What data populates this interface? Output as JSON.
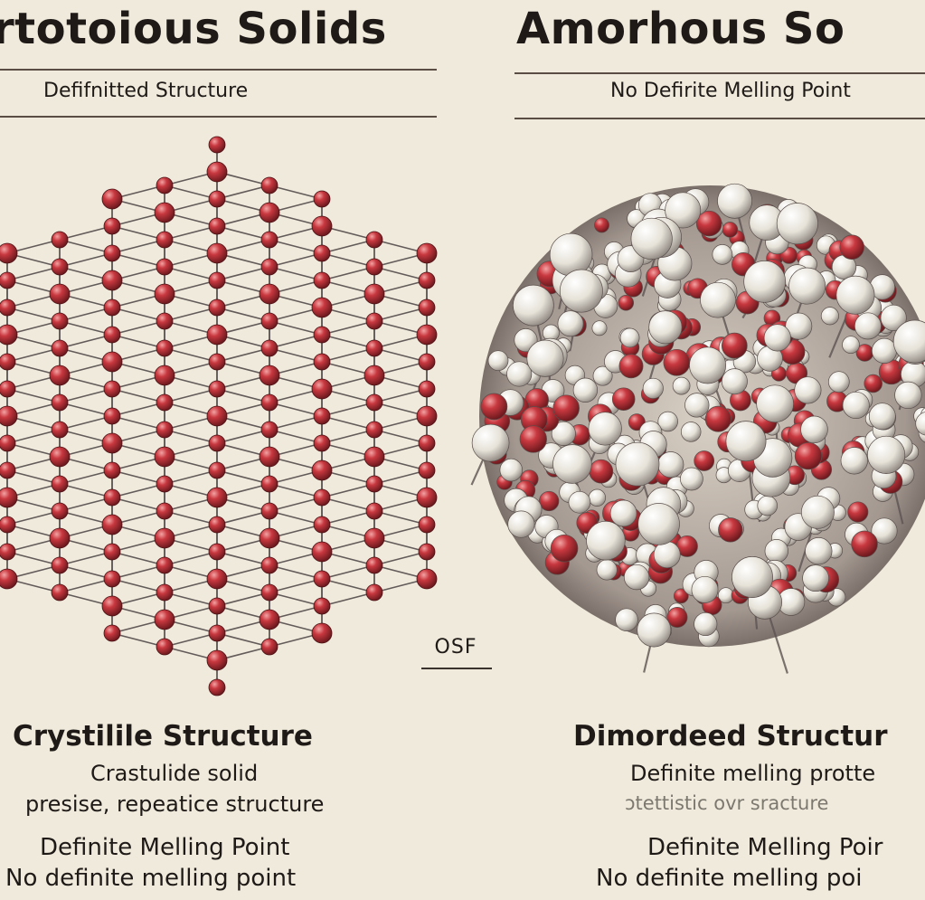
{
  "left": {
    "title": "rtotoious Solids",
    "subtitle": "Defifnitted Structure",
    "caption_head": "Crystilile Structure",
    "lines": [
      "Crastulide solid",
      "presise, repeatice structure",
      "Definite Melling Point",
      "No definite melling point"
    ]
  },
  "center_mark": "OSF",
  "right": {
    "title": "Amorhous So",
    "subtitle": "No Defirite Melling Point",
    "caption_head": "Dimordeed Structur",
    "lines": [
      "Definite melling protte",
      "ɔtettistic ovr sracture",
      "Definite Melling Poir",
      "No definite melling poi"
    ]
  },
  "colors": {
    "background": "#efeadb",
    "atom_red": "#b8323a",
    "atom_white": "#e9e6dd",
    "bond": "#4a4344",
    "text": "#1f1a17"
  }
}
